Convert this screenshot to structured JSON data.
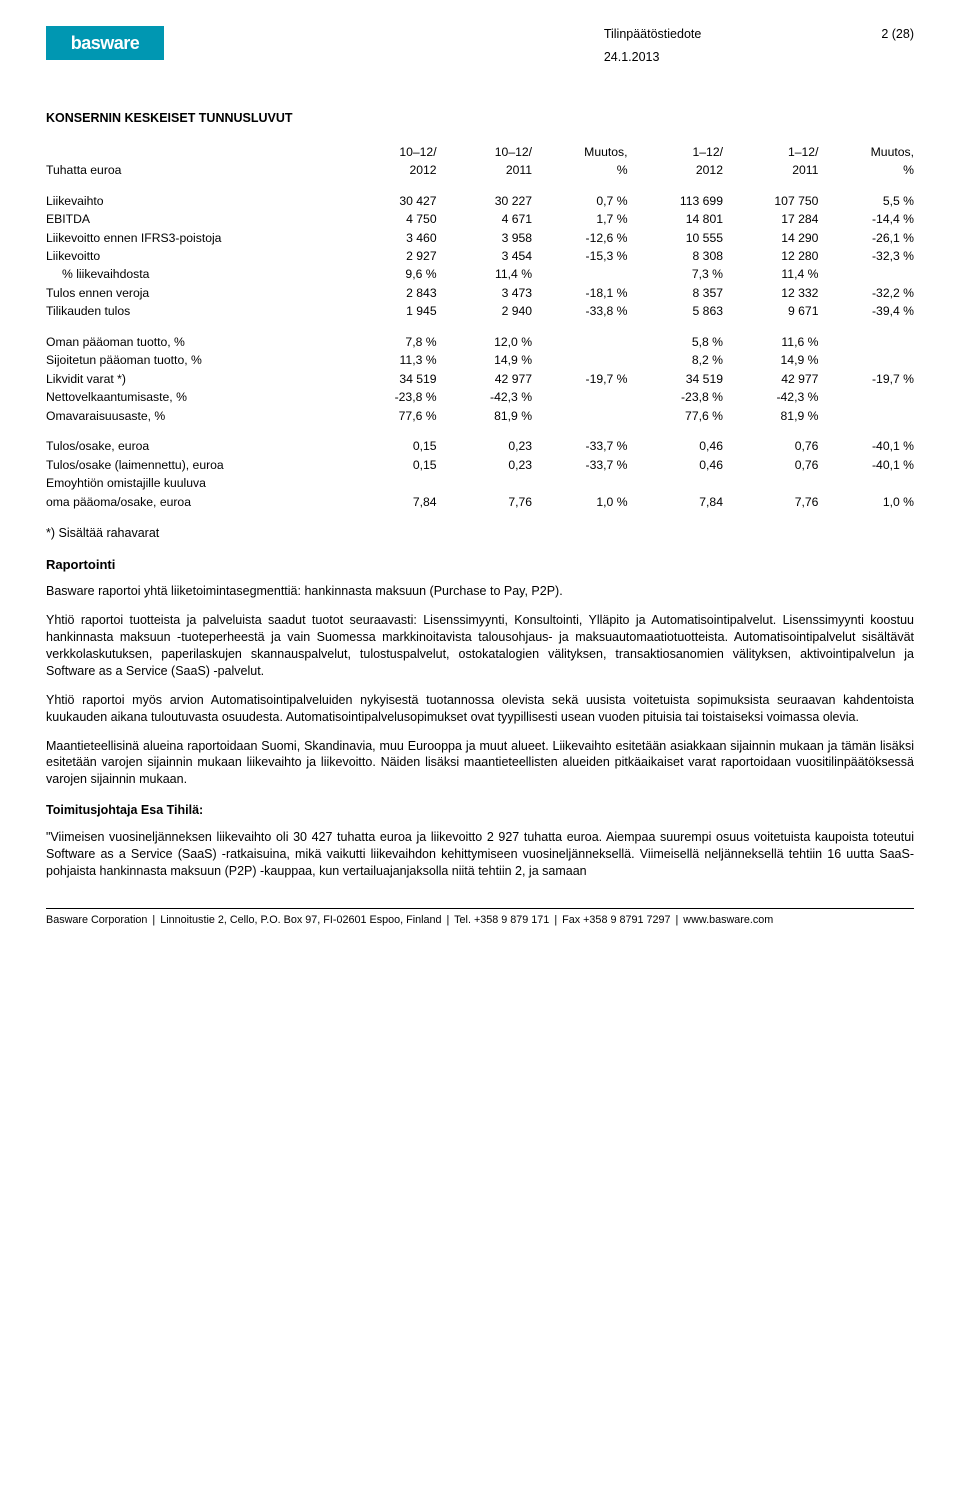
{
  "header": {
    "brand": "basware",
    "doc_title": "Tilinpäätöstiedote",
    "page": "2 (28)",
    "date": "24.1.2013"
  },
  "title": "KONSERNIN KESKEISET TUNNUSLUVUT",
  "table": {
    "head": {
      "label": "Tuhatta euroa",
      "c1a": "10–12/",
      "c1b": "2012",
      "c2a": "10–12/",
      "c2b": "2011",
      "c3a": "Muutos,",
      "c3b": "%",
      "c4a": "1–12/",
      "c4b": "2012",
      "c5a": "1–12/",
      "c5b": "2011",
      "c6a": "Muutos,",
      "c6b": "%"
    },
    "rows1": [
      {
        "l": "Liikevaihto",
        "v": [
          "30 427",
          "30 227",
          "0,7 %",
          "113 699",
          "107 750",
          "5,5 %"
        ]
      },
      {
        "l": "EBITDA",
        "v": [
          "4 750",
          "4 671",
          "1,7 %",
          "14 801",
          "17 284",
          "-14,4 %"
        ]
      },
      {
        "l": "Liikevoitto ennen IFRS3-poistoja",
        "v": [
          "3 460",
          "3 958",
          "-12,6 %",
          "10 555",
          "14 290",
          "-26,1 %"
        ]
      },
      {
        "l": "Liikevoitto",
        "v": [
          "2 927",
          "3 454",
          "-15,3 %",
          "8 308",
          "12 280",
          "-32,3 %"
        ]
      },
      {
        "l": "  % liikevaihdosta",
        "v": [
          "9,6 %",
          "11,4 %",
          "",
          "7,3 %",
          "11,4 %",
          ""
        ]
      },
      {
        "l": "Tulos ennen veroja",
        "v": [
          "2 843",
          "3 473",
          "-18,1 %",
          "8 357",
          "12 332",
          "-32,2 %"
        ]
      },
      {
        "l": "Tilikauden tulos",
        "v": [
          "1 945",
          "2 940",
          "-33,8 %",
          "5 863",
          "9 671",
          "-39,4 %"
        ]
      }
    ],
    "rows2": [
      {
        "l": "Oman pääoman tuotto, %",
        "v": [
          "7,8 %",
          "12,0 %",
          "",
          "5,8 %",
          "11,6 %",
          ""
        ]
      },
      {
        "l": "Sijoitetun pääoman tuotto, %",
        "v": [
          "11,3 %",
          "14,9 %",
          "",
          "8,2 %",
          "14,9 %",
          ""
        ]
      },
      {
        "l": "Likvidit varat *)",
        "v": [
          "34 519",
          "42 977",
          "-19,7 %",
          "34 519",
          "42 977",
          "-19,7 %"
        ]
      },
      {
        "l": "Nettovelkaantumisaste, %",
        "v": [
          "-23,8 %",
          "-42,3 %",
          "",
          "-23,8 %",
          "-42,3 %",
          ""
        ]
      },
      {
        "l": "Omavaraisuusaste, %",
        "v": [
          "77,6 %",
          "81,9 %",
          "",
          "77,6 %",
          "81,9 %",
          ""
        ]
      }
    ],
    "rows3": [
      {
        "l": "Tulos/osake, euroa",
        "v": [
          "0,15",
          "0,23",
          "-33,7 %",
          "0,46",
          "0,76",
          "-40,1 %"
        ]
      },
      {
        "l": "Tulos/osake (laimennettu), euroa",
        "v": [
          "0,15",
          "0,23",
          "-33,7 %",
          "0,46",
          "0,76",
          "-40,1 %"
        ]
      },
      {
        "l": "Emoyhtiön omistajille kuuluva",
        "v": [
          "",
          "",
          "",
          "",
          "",
          ""
        ]
      },
      {
        "l": "oma pääoma/osake, euroa",
        "v": [
          "7,84",
          "7,76",
          "1,0 %",
          "7,84",
          "7,76",
          "1,0 %"
        ]
      }
    ]
  },
  "footnote": "*) Sisältää rahavarat",
  "sections": {
    "raportointi_title": "Raportointi",
    "p1": "Basware raportoi yhtä liiketoimintasegmenttiä: hankinnasta maksuun (Purchase to Pay, P2P).",
    "p2": "Yhtiö raportoi tuotteista ja palveluista saadut tuotot seuraavasti: Lisenssimyynti, Konsultointi, Ylläpito ja Automatisointipalvelut. Lisenssimyynti koostuu hankinnasta maksuun -tuoteperheestä ja vain Suomessa markkinoitavista talousohjaus- ja maksuautomaatiotuotteista. Automatisointipalvelut sisältävät verkkolaskutuksen, paperilaskujen skannauspalvelut, tulostuspalvelut, ostokatalogien välityksen, transaktiosanomien välityksen, aktivointipalvelun ja Software as a Service (SaaS) -palvelut.",
    "p3": "Yhtiö raportoi myös arvion Automatisointipalveluiden nykyisestä tuotannossa olevista sekä uusista voitetuista sopimuksista seuraavan kahdentoista kuukauden aikana tuloutuvasta osuudesta. Automatisointipalvelusopimukset ovat tyypillisesti usean vuoden pituisia tai toistaiseksi voimassa olevia.",
    "p4": "Maantieteellisinä alueina raportoidaan Suomi, Skandinavia, muu Eurooppa ja muut alueet. Liikevaihto esitetään asiakkaan sijainnin mukaan ja tämän lisäksi esitetään varojen sijainnin mukaan liikevaihto ja liikevoitto. Näiden lisäksi maantieteellisten alueiden pitkäaikaiset varat raportoidaan vuositilinpäätöksessä varojen sijainnin mukaan.",
    "ceo_title": "Toimitusjohtaja Esa Tihilä:",
    "quote": "\"Viimeisen vuosineljänneksen liikevaihto oli 30 427 tuhatta euroa ja liikevoitto 2 927 tuhatta euroa. Aiempaa suurempi osuus voitetuista kaupoista toteutui Software as a Service (SaaS) -ratkaisuina, mikä vaikutti liikevaihdon kehittymiseen vuosineljänneksellä. Viimeisellä neljänneksellä tehtiin 16 uutta SaaS-pohjaista hankinnasta maksuun (P2P) -kauppaa, kun vertailuajanjaksolla niitä tehtiin 2, ja samaan"
  },
  "footer": {
    "left": "Basware Corporation",
    "addr": "Linnoitustie 2, Cello, P.O. Box 97, FI-02601 Espoo, Finland",
    "tel": "Tel. +358 9 879 171",
    "fax": "Fax +358 9 8791 7297",
    "web": "www.basware.com"
  }
}
